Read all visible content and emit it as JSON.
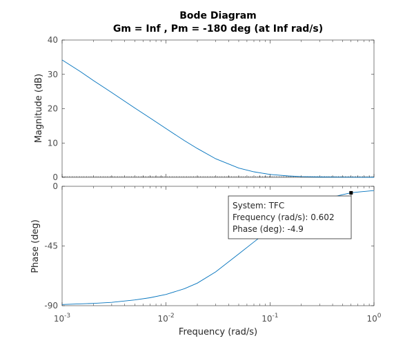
{
  "chart_data": {
    "type": "line",
    "title": "Bode Diagram",
    "subtitle": "Gm = Inf ,  Pm = -180 deg (at Inf rad/s)",
    "xlabel": "Frequency  (rad/s)",
    "x_scale": "log",
    "xlim": [
      0.001,
      1
    ],
    "x_ticks": [
      {
        "value": 0.001,
        "base": "10",
        "exp": "-3"
      },
      {
        "value": 0.01,
        "base": "10",
        "exp": "-2"
      },
      {
        "value": 0.1,
        "base": "10",
        "exp": "-1"
      },
      {
        "value": 1,
        "base": "10",
        "exp": "0"
      }
    ],
    "grid": false,
    "color": "#0072bd",
    "magnitude": {
      "ylabel": "Magnitude (dB)",
      "ylim": [
        0,
        40
      ],
      "yticks": [
        "0",
        "10",
        "20",
        "30",
        "40"
      ],
      "x": [
        0.001,
        0.0015,
        0.002,
        0.003,
        0.005,
        0.007,
        0.01,
        0.015,
        0.02,
        0.03,
        0.05,
        0.07,
        0.1,
        0.15,
        0.2,
        0.3,
        0.5,
        0.7,
        1
      ],
      "y": [
        34.2,
        30.8,
        28.2,
        24.7,
        20.2,
        17.3,
        14.2,
        10.7,
        8.4,
        5.4,
        2.7,
        1.6,
        0.85,
        0.4,
        0.22,
        0.1,
        0.04,
        0.02,
        0.01
      ]
    },
    "phase": {
      "ylabel": "Phase (deg)",
      "ylim": [
        -90,
        0
      ],
      "yticks": [
        "0",
        "-45",
        "-90"
      ],
      "x": [
        0.001,
        0.002,
        0.003,
        0.005,
        0.007,
        0.01,
        0.015,
        0.02,
        0.03,
        0.05,
        0.07,
        0.1,
        0.15,
        0.2,
        0.3,
        0.5,
        0.602,
        0.7,
        1
      ],
      "y": [
        -89.1,
        -88.3,
        -87.5,
        -85.7,
        -84.0,
        -81.5,
        -77.2,
        -73.0,
        -64.5,
        -51.0,
        -42.0,
        -32.5,
        -21.5,
        -16.0,
        -10.5,
        -6.3,
        -4.9,
        -4.3,
        -3.2
      ]
    },
    "datatip": {
      "x": 0.602,
      "y": -4.9,
      "lines": [
        "System: TFC",
        "Frequency (rad/s): 0.602",
        "Phase (deg): -4.9"
      ]
    }
  }
}
